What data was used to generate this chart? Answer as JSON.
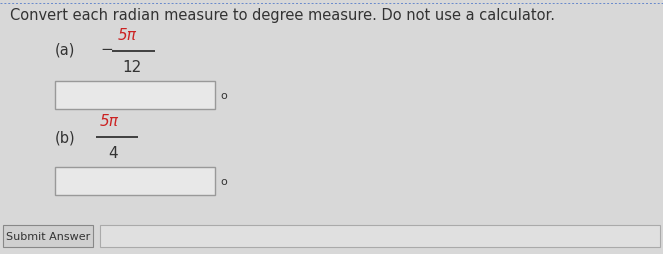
{
  "title": "Convert each radian measure to degree measure. Do not use a calculator.",
  "title_color": "#333333",
  "title_fontsize": 10.5,
  "background_color": "#d8d8d8",
  "label_a": "(a)",
  "label_b": "(b)",
  "fraction_a_num": "5π",
  "fraction_a_den": "12",
  "fraction_b_num": "5π",
  "fraction_b_den": "4",
  "minus_sign": "−",
  "degree_symbol": "o",
  "box_facecolor": "#e8e8e8",
  "box_edgecolor": "#999999",
  "fraction_color_num": "#cc2222",
  "fraction_color_den": "#333333",
  "label_color": "#333333",
  "submit_label": "Submit Answer",
  "submit_box_facecolor": "#d0d0d0",
  "submit_box_edge": "#888888",
  "answer_box_facecolor": "#e0e0e0",
  "answer_box_edge": "#aaaaaa",
  "dot_color": "#7777bb",
  "fig_width": 6.63,
  "fig_height": 2.55,
  "dpi": 100
}
